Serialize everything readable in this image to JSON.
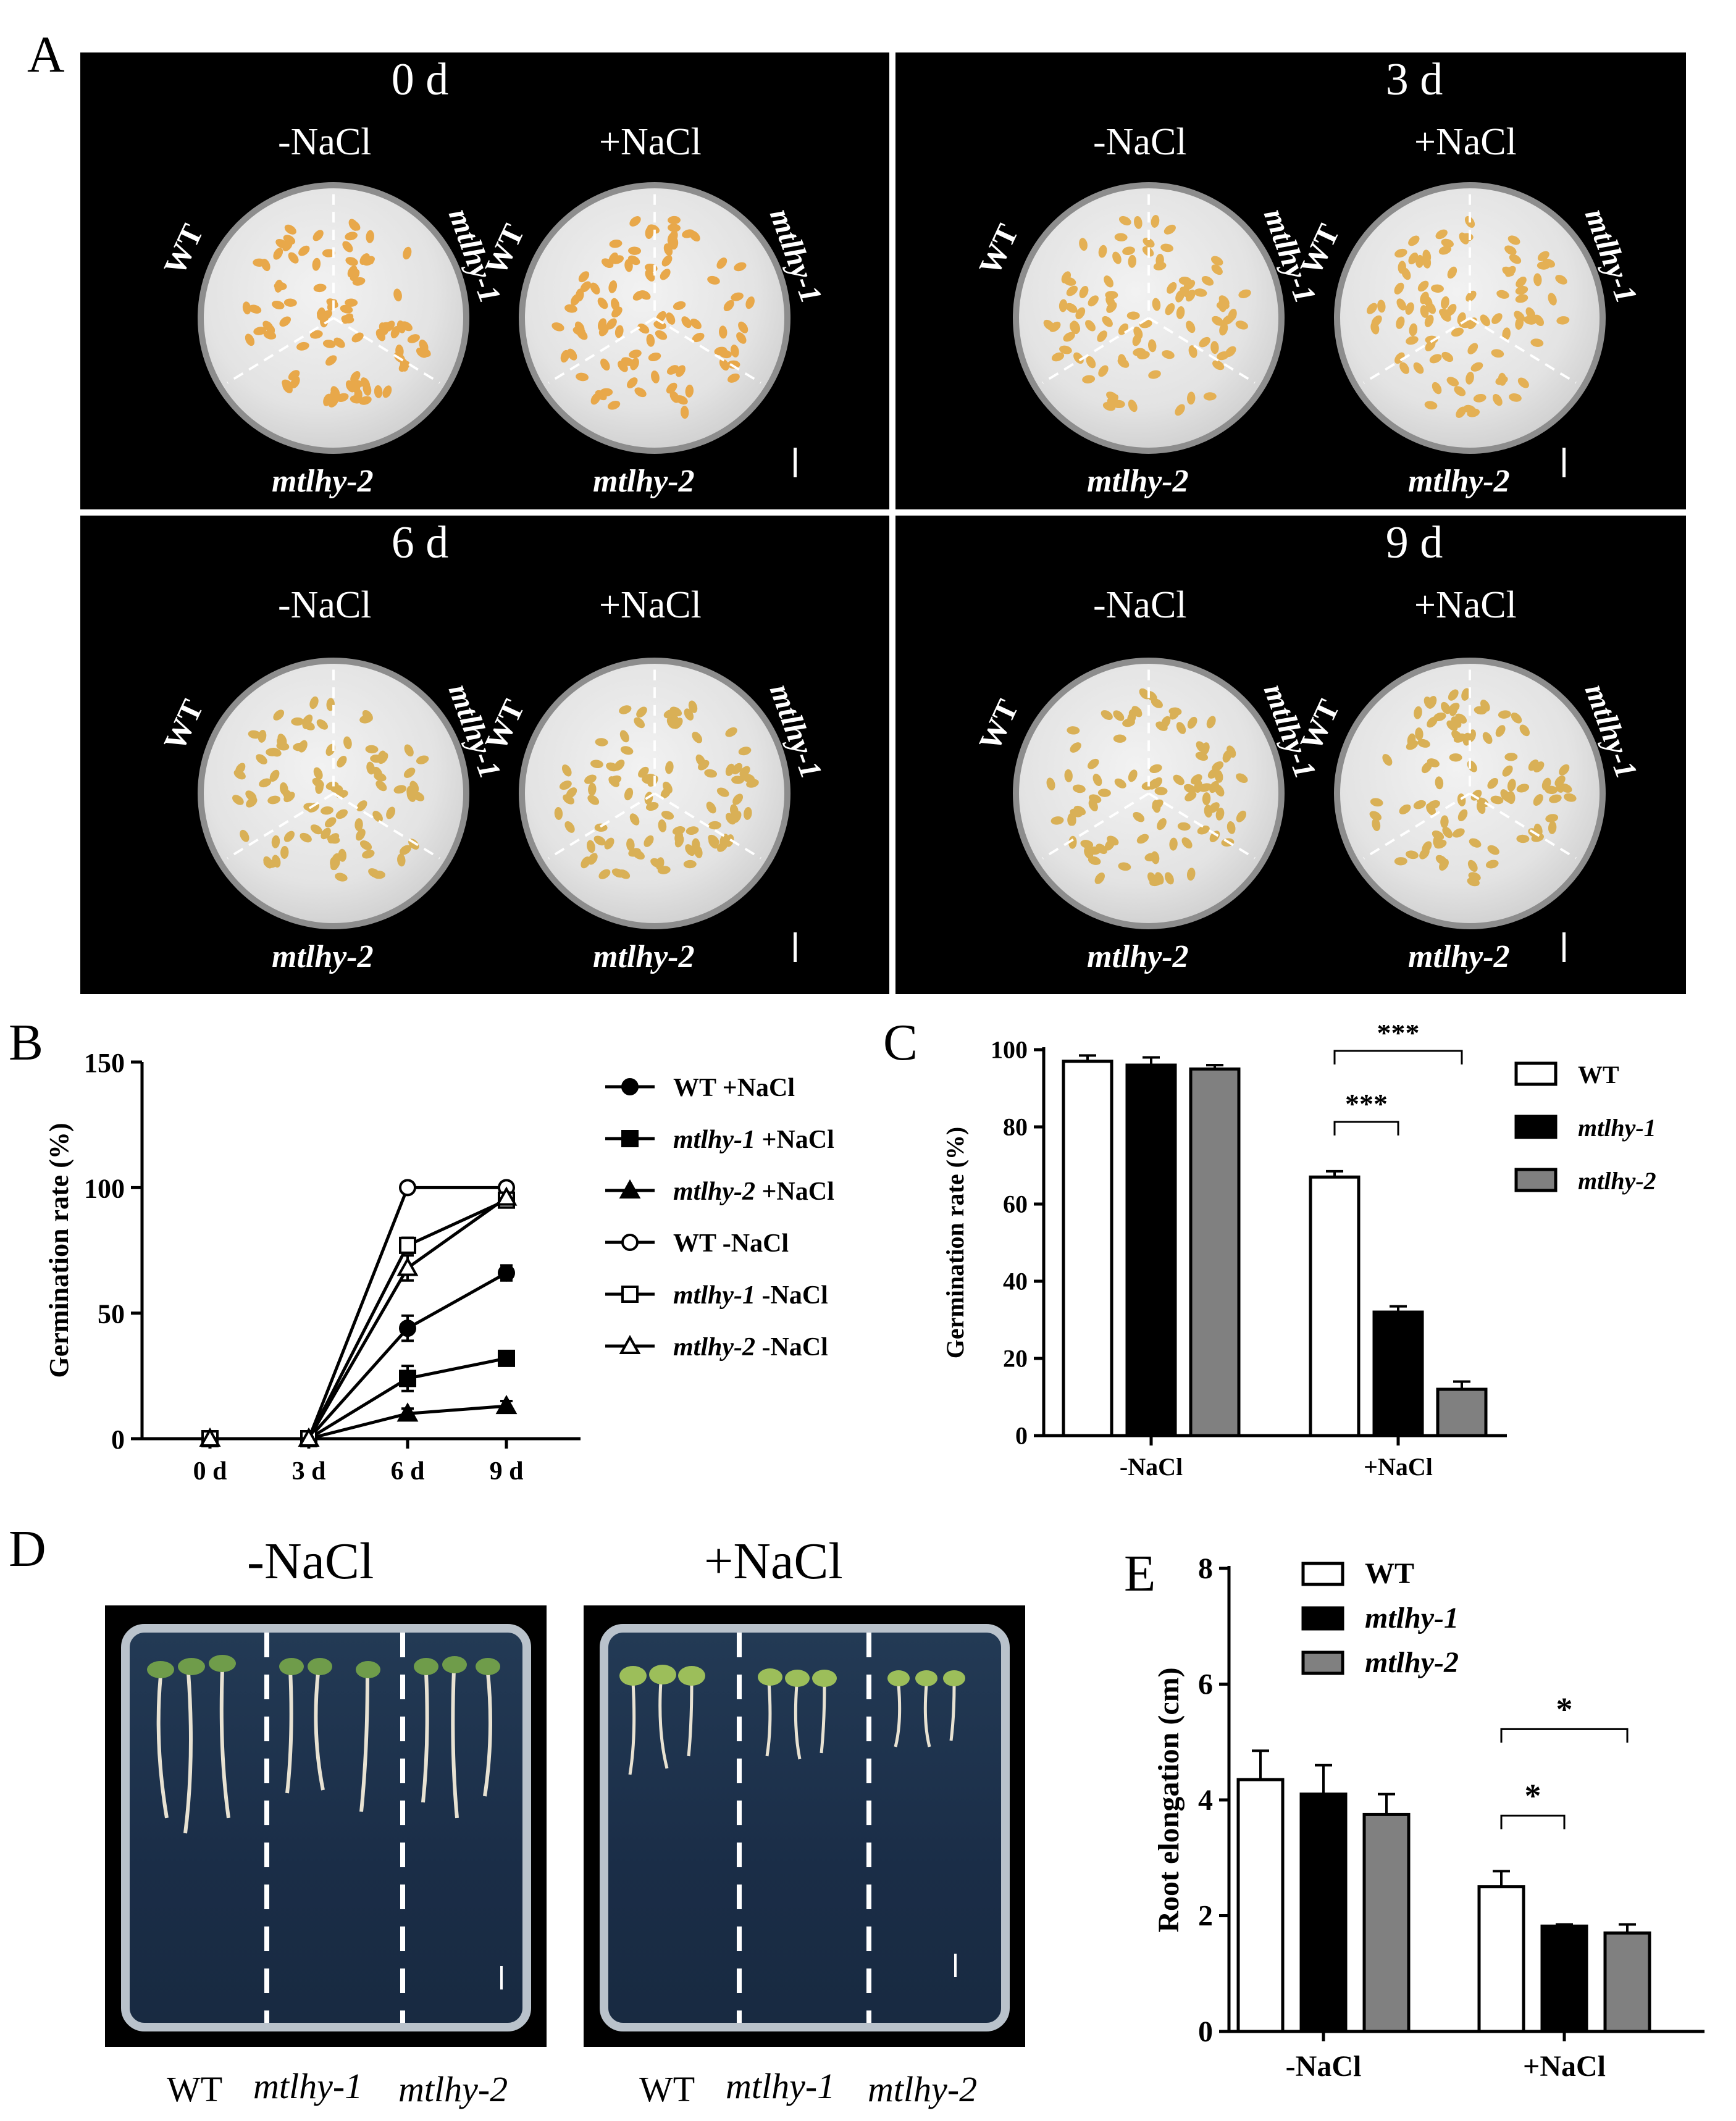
{
  "panels": {
    "a": {
      "letter": "A",
      "days": [
        "0 d",
        "3 d",
        "6 d",
        "9 d"
      ],
      "conditions": [
        "-NaCl",
        "+NaCl"
      ],
      "genotypes": {
        "wt": "WT",
        "m1": "mtlhy-1",
        "m2": "mtlhy-2"
      }
    },
    "b": {
      "letter": "B"
    },
    "c": {
      "letter": "C"
    },
    "d": {
      "letter": "D",
      "conditions": [
        "-NaCl",
        "+NaCl"
      ],
      "genotypes": [
        "WT",
        "mtlhy-1",
        "mtlhy-2"
      ]
    },
    "e": {
      "letter": "E"
    }
  },
  "chart_data": [
    {
      "id": "B",
      "type": "line",
      "ylabel": "Germination rate (%)",
      "categories": [
        "0 d",
        "3 d",
        "6 d",
        "9 d"
      ],
      "ylim": [
        0,
        150
      ],
      "yticks": [
        0,
        50,
        100,
        150
      ],
      "legend": "right",
      "series": [
        {
          "name": "WT +NaCl",
          "marker": "circle-filled",
          "values": [
            0,
            0,
            44,
            66
          ],
          "err": [
            0,
            0,
            5,
            3
          ]
        },
        {
          "name": "mtlhy-1 +NaCl",
          "marker": "square-filled",
          "values": [
            0,
            0,
            24,
            32
          ],
          "err": [
            0,
            0,
            5,
            2
          ]
        },
        {
          "name": "mtlhy-2 +NaCl",
          "marker": "triangle-filled",
          "values": [
            0,
            0,
            10,
            13
          ],
          "err": [
            0,
            0,
            2,
            2
          ]
        },
        {
          "name": "WT -NaCl",
          "marker": "circle-open",
          "values": [
            0,
            0,
            100,
            100
          ],
          "err": [
            0,
            0,
            0,
            0
          ]
        },
        {
          "name": "mtlhy-1 -NaCl",
          "marker": "square-open",
          "values": [
            0,
            0,
            77,
            95
          ],
          "err": [
            0,
            0,
            3,
            2
          ]
        },
        {
          "name": "mtlhy-2 -NaCl",
          "marker": "triangle-open",
          "values": [
            0,
            0,
            68,
            96
          ],
          "err": [
            0,
            0,
            5,
            2
          ]
        }
      ],
      "legend_entries": [
        {
          "italic": "",
          "rest": "WT +NaCl"
        },
        {
          "italic": "mtlhy-1",
          "rest": " +NaCl"
        },
        {
          "italic": "mtlhy-2",
          "rest": " +NaCl"
        },
        {
          "italic": "",
          "rest": "WT -NaCl"
        },
        {
          "italic": "mtlhy-1",
          "rest": " -NaCl"
        },
        {
          "italic": "mtlhy-2",
          "rest": " -NaCl"
        }
      ]
    },
    {
      "id": "C",
      "type": "bar",
      "ylabel": "Germination rate (%)",
      "categories": [
        "-NaCl",
        "+NaCl"
      ],
      "ylim": [
        0,
        100
      ],
      "yticks": [
        0,
        20,
        40,
        60,
        80,
        100
      ],
      "legend": "right",
      "series": [
        {
          "name": "WT",
          "color": "#ffffff",
          "values": [
            97,
            67
          ],
          "err": [
            1.5,
            1.5
          ]
        },
        {
          "name": "mtlhy-1",
          "color": "#000000",
          "values": [
            96,
            32
          ],
          "err": [
            2,
            1.5
          ]
        },
        {
          "name": "mtlhy-2",
          "color": "#808080",
          "values": [
            95,
            12
          ],
          "err": [
            1,
            2
          ]
        }
      ],
      "annotations": [
        {
          "text": "***",
          "from": "WT",
          "to": "mtlhy-1"
        },
        {
          "text": "***",
          "from": "WT",
          "to": "mtlhy-2"
        }
      ]
    },
    {
      "id": "E",
      "type": "bar",
      "ylabel": "Root elongation (cm)",
      "categories": [
        "-NaCl",
        "+NaCl"
      ],
      "ylim": [
        0,
        8
      ],
      "yticks": [
        0,
        2,
        4,
        6,
        8
      ],
      "legend": "top-left",
      "series": [
        {
          "name": "WT",
          "color": "#ffffff",
          "values": [
            4.35,
            2.5
          ],
          "err": [
            0.5,
            0.27
          ]
        },
        {
          "name": "mtlhy-1",
          "color": "#000000",
          "values": [
            4.1,
            1.82
          ],
          "err": [
            0.5,
            0.03
          ]
        },
        {
          "name": "mtlhy-2",
          "color": "#808080",
          "values": [
            3.75,
            1.7
          ],
          "err": [
            0.35,
            0.15
          ]
        }
      ],
      "annotations": [
        {
          "text": "*",
          "from": "WT",
          "to": "mtlhy-1"
        },
        {
          "text": "*",
          "from": "WT",
          "to": "mtlhy-2"
        }
      ]
    }
  ]
}
